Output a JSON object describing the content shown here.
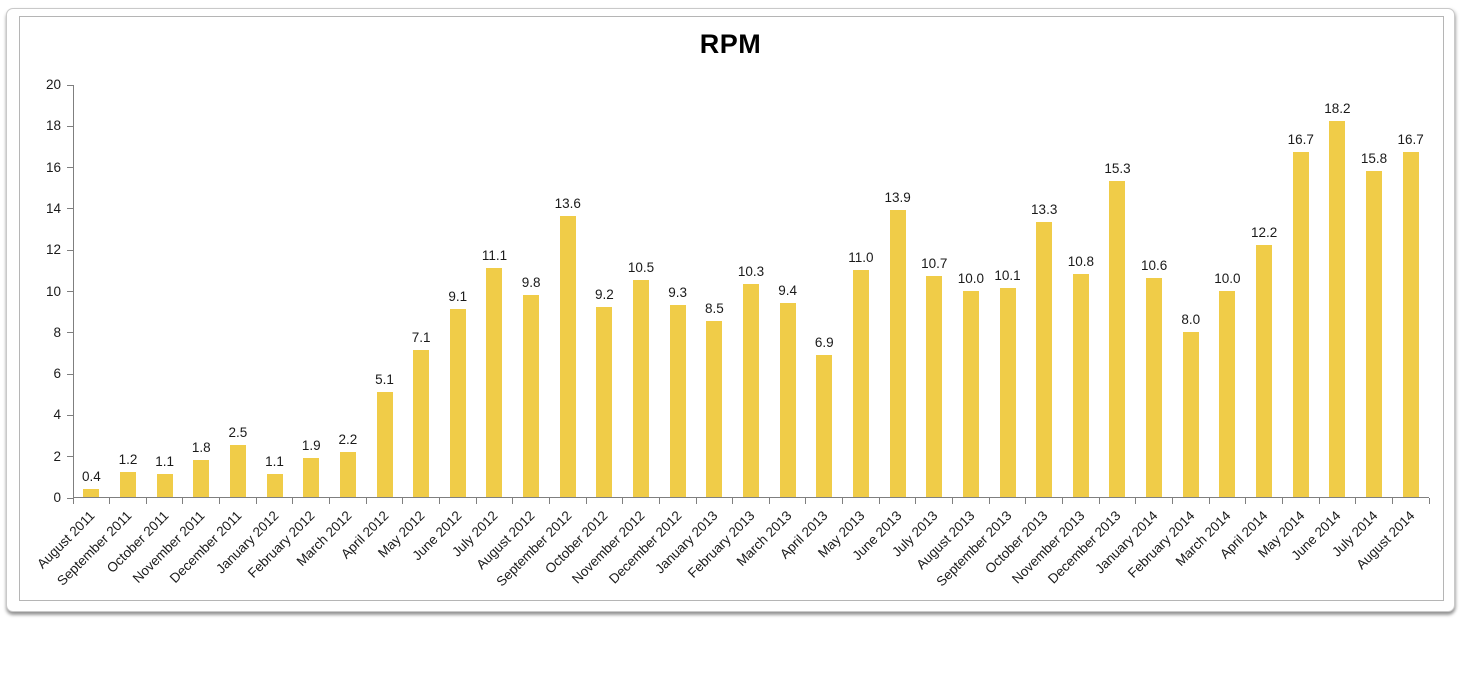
{
  "page": {
    "background": "#ffffff"
  },
  "chart_data": {
    "type": "bar",
    "title": "RPM",
    "categories": [
      "August 2011",
      "September 2011",
      "October 2011",
      "November 2011",
      "December 2011",
      "January 2012",
      "February 2012",
      "March 2012",
      "April 2012",
      "May 2012",
      "June 2012",
      "July 2012",
      "August 2012",
      "September 2012",
      "October 2012",
      "November 2012",
      "December 2012",
      "January 2013",
      "February 2013",
      "March 2013",
      "April 2013",
      "May 2013",
      "June 2013",
      "July 2013",
      "August 2013",
      "September 2013",
      "October 2013",
      "November 2013",
      "December 2013",
      "January 2014",
      "February 2014",
      "March 2014",
      "April 2014",
      "May 2014",
      "June 2014",
      "July 2014",
      "August 2014"
    ],
    "values": [
      0.4,
      1.2,
      1.1,
      1.8,
      2.5,
      1.1,
      1.9,
      2.2,
      5.1,
      7.1,
      9.1,
      11.1,
      9.8,
      13.6,
      9.2,
      10.5,
      9.3,
      8.5,
      10.3,
      9.4,
      6.9,
      11.0,
      13.9,
      10.7,
      10.0,
      10.1,
      13.3,
      10.8,
      15.3,
      10.6,
      8.0,
      10.0,
      12.2,
      16.7,
      18.2,
      15.8,
      16.7
    ],
    "value_labels": [
      "0.4",
      "1.2",
      "1.1",
      "1.8",
      "2.5",
      "1.1",
      "1.9",
      "2.2",
      "5.1",
      "7.1",
      "9.1",
      "11.1",
      "9.8",
      "13.6",
      "9.2",
      "10.5",
      "9.3",
      "8.5",
      "10.3",
      "9.4",
      "6.9",
      "11.0",
      "13.9",
      "10.7",
      "10.0",
      "10.1",
      "13.3",
      "10.8",
      "15.3",
      "10.6",
      "8.0",
      "10.0",
      "12.2",
      "16.7",
      "18.2",
      "15.8",
      "16.7"
    ],
    "xlabel": "",
    "ylabel": "",
    "ylim": [
      0,
      20
    ],
    "y_tick_step": 2,
    "y_tick_labels": [
      "0",
      "2",
      "4",
      "6",
      "8",
      "10",
      "12",
      "14",
      "16",
      "18",
      "20"
    ],
    "x_label_rotation_deg": -45,
    "grid": false,
    "legend": false,
    "bar_color": "#F0CC48",
    "axis_color": "#7f7f7f",
    "label_color": "#1a1a1a"
  }
}
